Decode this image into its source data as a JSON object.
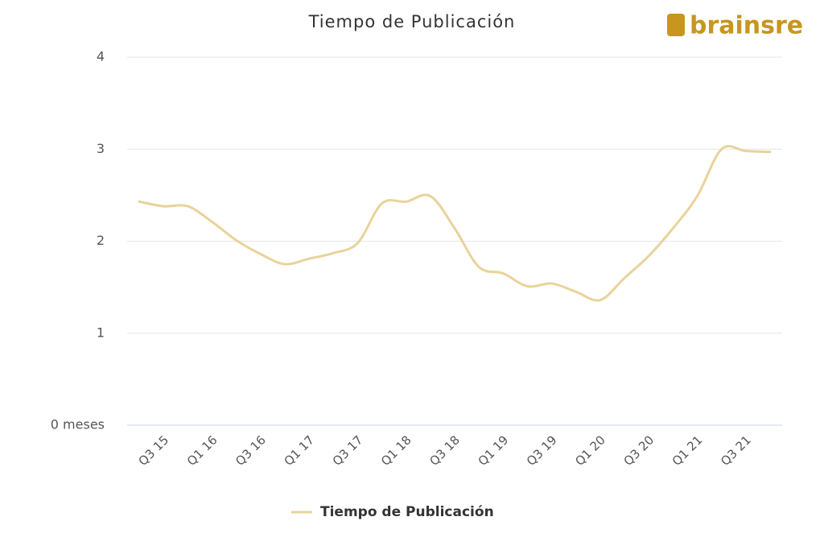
{
  "logo": "brainsre",
  "chart_data": {
    "type": "line",
    "title": "Tiempo de Publicación",
    "categories": [
      null,
      "Q3 15",
      null,
      "Q1 16",
      null,
      "Q3 16",
      null,
      "Q1 17",
      null,
      "Q3 17",
      null,
      "Q1 18",
      null,
      "Q3 18",
      null,
      "Q1 19",
      null,
      "Q3 19",
      null,
      "Q1 20",
      null,
      "Q3 20",
      null,
      "Q1 21",
      null,
      "Q3 21",
      null
    ],
    "series": [
      {
        "name": "Tiempo de Publicación",
        "color": "#e8d39a",
        "values": [
          2.43,
          2.38,
          2.38,
          2.21,
          2.01,
          1.86,
          1.75,
          1.81,
          1.87,
          1.98,
          2.41,
          2.43,
          2.49,
          2.14,
          1.72,
          1.65,
          1.51,
          1.54,
          1.45,
          1.36,
          1.6,
          1.84,
          2.14,
          2.49,
          3.0,
          2.98,
          2.97
        ]
      }
    ],
    "ylim": [
      0,
      4
    ],
    "yticks": [
      {
        "value": 0,
        "label": "0 meses"
      },
      1,
      2,
      3,
      4
    ],
    "grid": true,
    "legend": "bottom"
  }
}
